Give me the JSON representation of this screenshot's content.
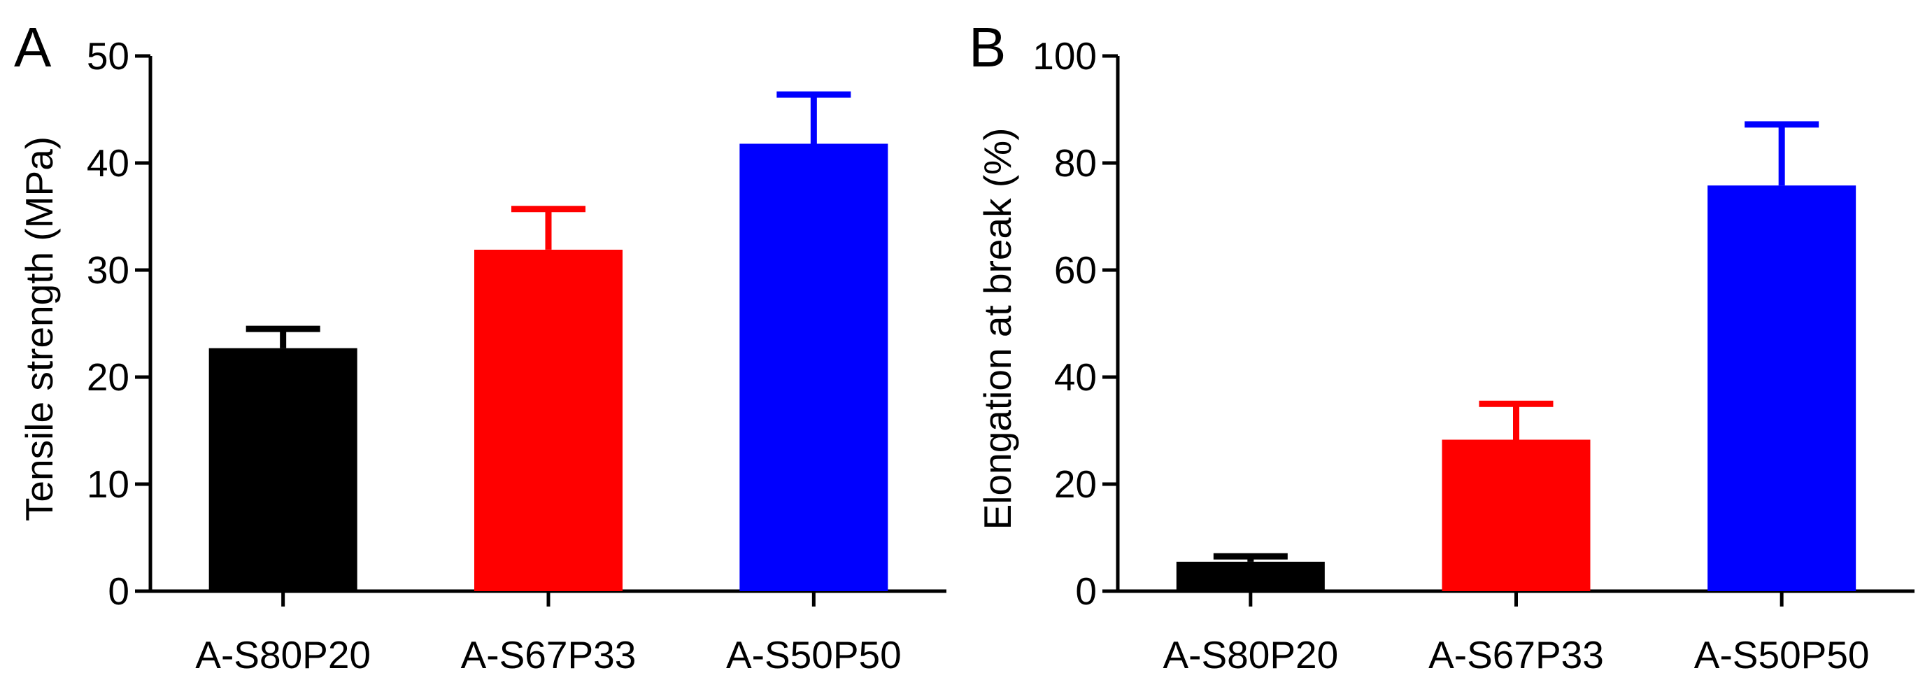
{
  "chart_data": [
    {
      "type": "bar",
      "panel_label": "A",
      "categories": [
        "A-S80P20",
        "A-S67P33",
        "A-S50P50"
      ],
      "values": [
        22.7,
        31.9,
        41.8
      ],
      "errors": [
        1.8,
        3.8,
        4.6
      ],
      "colors": [
        "#000000",
        "#ff0000",
        "#0000ff"
      ],
      "title": "",
      "xlabel": "",
      "ylabel": "Tensile strength (MPa)",
      "ylim": [
        0,
        50
      ],
      "yticks": [
        0,
        10,
        20,
        30,
        40,
        50
      ],
      "grid": false
    },
    {
      "type": "bar",
      "panel_label": "B",
      "categories": [
        "A-S80P20",
        "A-S67P33",
        "A-S50P50"
      ],
      "values": [
        5.5,
        28.3,
        75.8
      ],
      "errors": [
        1.0,
        6.7,
        11.4
      ],
      "colors": [
        "#000000",
        "#ff0000",
        "#0000ff"
      ],
      "title": "",
      "xlabel": "",
      "ylabel": "Elongation at break (%)",
      "ylim": [
        0,
        100
      ],
      "yticks": [
        0,
        20,
        40,
        60,
        80,
        100
      ],
      "grid": false
    }
  ]
}
